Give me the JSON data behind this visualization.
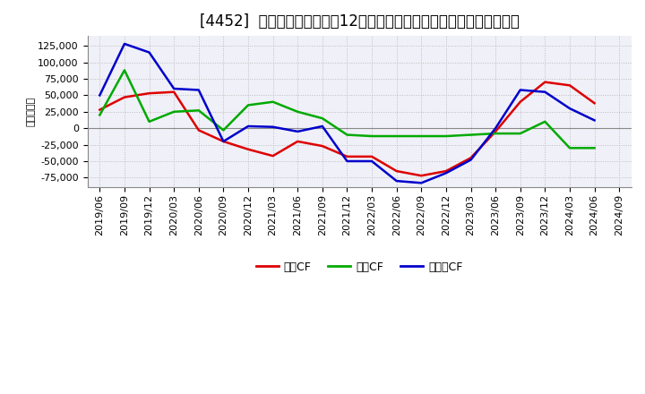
{
  "title": "[4452]  キャッシュフローの12か月移動合計の対前年同期増減額の推移",
  "ylabel": "（百万円）",
  "background_color": "#ffffff",
  "plot_background": "#f0f0f8",
  "grid_color": "#aaaaaa",
  "x_labels": [
    "2019/06",
    "2019/09",
    "2019/12",
    "2020/03",
    "2020/06",
    "2020/09",
    "2020/12",
    "2021/03",
    "2021/06",
    "2021/09",
    "2021/12",
    "2022/03",
    "2022/06",
    "2022/09",
    "2022/12",
    "2023/03",
    "2023/06",
    "2023/09",
    "2023/12",
    "2024/03",
    "2024/06",
    "2024/09"
  ],
  "series": {
    "営業CF": {
      "color": "#dd0000",
      "data": [
        28000,
        47000,
        53000,
        55000,
        -3000,
        -20000,
        -32000,
        -42000,
        -20000,
        -27000,
        -43000,
        -43000,
        -65000,
        -72000,
        -65000,
        -45000,
        -5000,
        40000,
        70000,
        65000,
        38000,
        null
      ]
    },
    "投資CF": {
      "color": "#00aa00",
      "data": [
        20000,
        88000,
        10000,
        25000,
        27000,
        -3000,
        35000,
        40000,
        25000,
        15000,
        -10000,
        -12000,
        -12000,
        -12000,
        -12000,
        -10000,
        -8000,
        -8000,
        10000,
        -30000,
        -30000,
        null
      ]
    },
    "フリーCF": {
      "color": "#0000cc",
      "data": [
        50000,
        128000,
        115000,
        60000,
        58000,
        -20000,
        3000,
        2000,
        -5000,
        3000,
        -50000,
        -50000,
        -80000,
        -83000,
        -68000,
        -48000,
        0,
        58000,
        55000,
        30000,
        12000,
        null
      ]
    }
  },
  "ylim": [
    -90000,
    140000
  ],
  "yticks": [
    -75000,
    -50000,
    -25000,
    0,
    25000,
    50000,
    75000,
    100000,
    125000
  ],
  "legend_order": [
    "営業CF",
    "投資CF",
    "フリーCF"
  ],
  "title_fontsize": 12,
  "axis_fontsize": 8,
  "legend_fontsize": 9
}
